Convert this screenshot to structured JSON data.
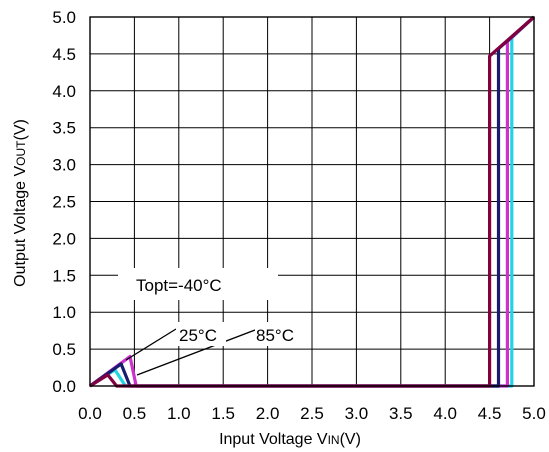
{
  "chart_data": {
    "type": "line",
    "xlabel": {
      "pre": "Input Voltage V",
      "sub": "IN",
      "post": "(V)"
    },
    "ylabel": {
      "pre": "Output Voltage V",
      "sub": "OUT",
      "post": "(V)"
    },
    "xlim": [
      0,
      5
    ],
    "ylim": [
      0,
      5
    ],
    "x_ticks": [
      "0.0",
      "0.5",
      "1.0",
      "1.5",
      "2.0",
      "2.5",
      "3.0",
      "3.5",
      "4.0",
      "4.5",
      "5.0"
    ],
    "y_ticks": [
      "0.0",
      "0.5",
      "1.0",
      "1.5",
      "2.0",
      "2.5",
      "3.0",
      "3.5",
      "4.0",
      "4.5",
      "5.0"
    ],
    "grid": true,
    "series": [
      {
        "name": "Topt=-40°C",
        "color": "#22d3e6",
        "points": [
          [
            0,
            0
          ],
          [
            0.28,
            0.22
          ],
          [
            0.4,
            0.0
          ],
          [
            4.75,
            0.0
          ],
          [
            4.75,
            4.72
          ],
          [
            5.0,
            5.0
          ]
        ]
      },
      {
        "name": "25°C",
        "color": "#cc33cc",
        "points": [
          [
            0,
            0
          ],
          [
            0.45,
            0.4
          ],
          [
            0.52,
            0.0
          ],
          [
            4.7,
            0.0
          ],
          [
            4.7,
            4.67
          ],
          [
            5.0,
            5.0
          ]
        ]
      },
      {
        "name": "85°C",
        "color": "#1a1a70",
        "points": [
          [
            0,
            0
          ],
          [
            0.35,
            0.3
          ],
          [
            0.45,
            0.0
          ],
          [
            4.6,
            0.0
          ],
          [
            4.6,
            4.57
          ],
          [
            5.0,
            5.0
          ]
        ]
      },
      {
        "name": "",
        "color": "#800040",
        "points": [
          [
            0,
            0
          ],
          [
            0.2,
            0.15
          ],
          [
            0.3,
            0.0
          ],
          [
            4.5,
            0.0
          ],
          [
            4.5,
            4.47
          ],
          [
            5.0,
            5.0
          ]
        ]
      }
    ],
    "annotations": [
      {
        "text": "Topt=-40°C"
      },
      {
        "text": "25°C"
      },
      {
        "text": "85°C"
      }
    ]
  }
}
